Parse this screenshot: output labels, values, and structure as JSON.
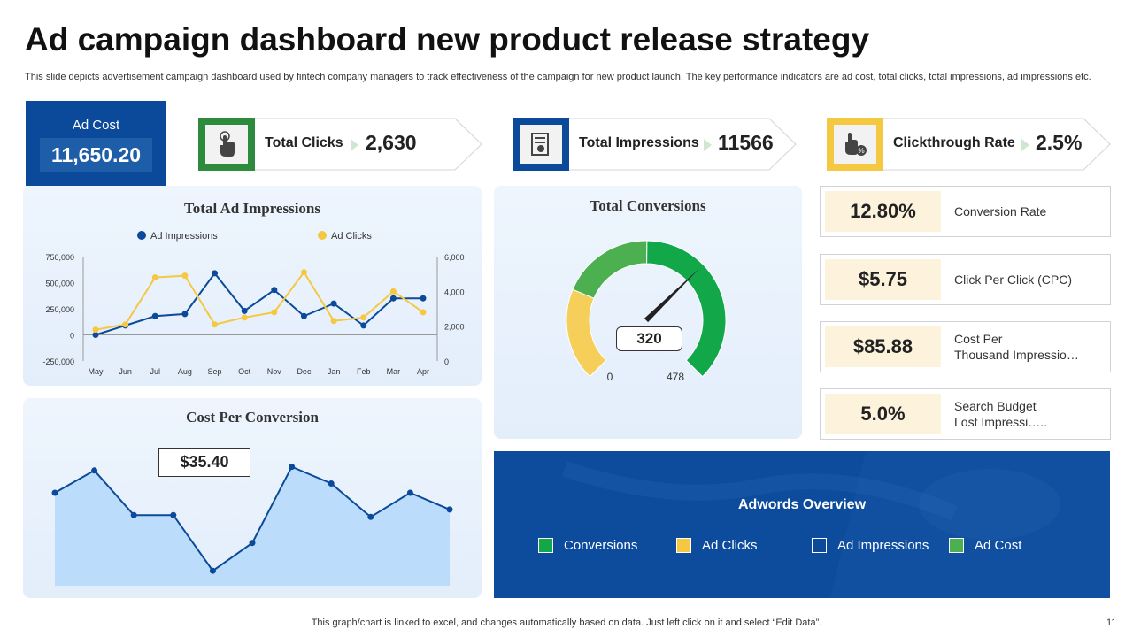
{
  "title": "Ad campaign dashboard new product release strategy",
  "subtitle": "This slide depicts advertisement campaign dashboard used by fintech company managers to track effectiveness of the campaign for new product launch. The key performance indicators are ad cost, total clicks, total impressions, ad impressions etc.",
  "ad_cost": {
    "label": "Ad Cost",
    "value": "11,650.20"
  },
  "kpis": [
    {
      "label": "Total Clicks",
      "value": "2,630",
      "icon": "touch-icon",
      "color": "#2e8b3e"
    },
    {
      "label": "Total Impressions",
      "value": "11566",
      "icon": "document-icon",
      "color": "#0b4a9a"
    },
    {
      "label": "Clickthrough Rate",
      "value": "2.5%",
      "icon": "click-percent-icon",
      "color": "#f5c842"
    }
  ],
  "metrics": [
    {
      "value": "12.80%",
      "label": "Conversion Rate"
    },
    {
      "value": "$5.75",
      "label": "Click Per Click (CPC)"
    },
    {
      "value": "$85.88",
      "label_line1": "Cost Per",
      "label_line2": "Thousand Impressio…"
    },
    {
      "value": "5.0%",
      "label_line1": "Search Budget",
      "label_line2": "Lost Impressi….."
    }
  ],
  "overview": {
    "title": "Adwords Overview",
    "legend": [
      {
        "label": "Conversions",
        "color": "#12a84a"
      },
      {
        "label": "Ad Clicks",
        "color": "#f5c842"
      },
      {
        "label": "Ad Impressions",
        "color": "#0b4a9a"
      },
      {
        "label": "Ad Cost",
        "color": "#4caf50"
      }
    ]
  },
  "footer": "This graph/chart is linked to excel, and changes automatically based on data. Just left click on it and select “Edit Data”.",
  "page_number": "11",
  "chart_data": [
    {
      "type": "line",
      "title": "Total Ad Impressions",
      "categories": [
        "May",
        "Jun",
        "Jul",
        "Aug",
        "Sep",
        "Oct",
        "Nov",
        "Dec",
        "Jan",
        "Feb",
        "Mar",
        "Apr"
      ],
      "y_left_ticks": [
        "750,000",
        "500,000",
        "250,000",
        "0",
        "-250,000"
      ],
      "y_right_ticks": [
        "6,000",
        "4,000",
        "2,000",
        "0"
      ],
      "ylim_left": [
        -250000,
        750000
      ],
      "ylim_right": [
        0,
        6000
      ],
      "series": [
        {
          "name": "Ad Impressions",
          "axis": "left",
          "color": "#0b4a9a",
          "values": [
            0,
            90000,
            180000,
            200000,
            590000,
            230000,
            430000,
            180000,
            300000,
            90000,
            350000,
            350000
          ]
        },
        {
          "name": "Ad Clicks",
          "axis": "right",
          "color": "#f5c842",
          "values": [
            1800,
            2100,
            4800,
            4900,
            2100,
            2500,
            2800,
            5100,
            2300,
            2500,
            4000,
            2800
          ]
        }
      ]
    },
    {
      "type": "area",
      "title": "Cost Per Conversion",
      "annotation": "$35.40",
      "values": [
        50,
        62,
        38,
        38,
        8,
        23,
        64,
        55,
        37,
        50,
        41
      ],
      "ylim": [
        0,
        80
      ],
      "color": "#0b4a9a",
      "fill": "#bcdcfb"
    },
    {
      "type": "gauge",
      "title": "Total Conversions",
      "value": 320,
      "value_label": "320",
      "min": 0,
      "max": 478,
      "min_label": "0",
      "max_label": "478",
      "bands": [
        {
          "from": 0,
          "to": 120,
          "color": "#f5cf5a"
        },
        {
          "from": 120,
          "to": 240,
          "color": "#4caf50"
        },
        {
          "from": 240,
          "to": 478,
          "color": "#12a84a"
        }
      ]
    }
  ]
}
